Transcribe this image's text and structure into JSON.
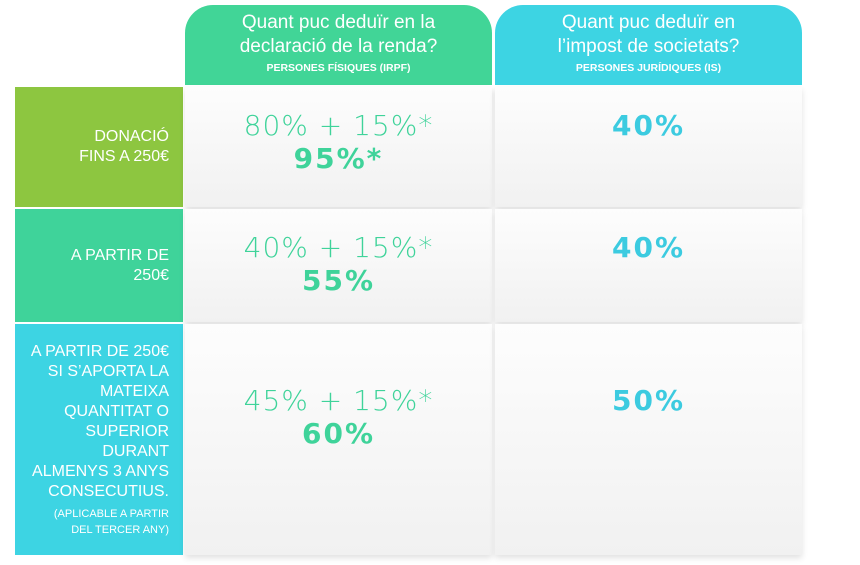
{
  "header": {
    "columns": [
      {
        "title": [
          "Quant puc deduïr en la",
          "declaració de la renda?"
        ],
        "subtitle": "PERSONES FÍSIQUES (IRPF)"
      },
      {
        "title": [
          "Quant puc deduïr en",
          "l’impost de societats?"
        ],
        "subtitle": "PERSONES JURÍDIQUES (IS)"
      }
    ]
  },
  "table": {
    "rows": [
      {
        "label": [
          "DONACIÓ",
          "FINS A 250€"
        ],
        "note": [],
        "irpf_formula": "80% + 15%*",
        "irpf_total": "95%*",
        "is": "40%"
      },
      {
        "label": [
          "A PARTIR DE",
          "250€"
        ],
        "note": [],
        "irpf_formula": "40% + 15%*",
        "irpf_total": "55%",
        "is": "40%"
      },
      {
        "label": [
          "A PARTIR DE 250€",
          "SI S’APORTA LA",
          "MATEIXA",
          "QUANTITAT O",
          "SUPERIOR",
          "DURANT",
          "ALMENYS 3 ANYS",
          "CONSECUTIUS."
        ],
        "note": [
          "(APLICABLE A PARTIR",
          "DEL TERCER ANY)"
        ],
        "irpf_formula": "45% + 15%*",
        "irpf_total": "60%",
        "is": "50%"
      }
    ]
  }
}
